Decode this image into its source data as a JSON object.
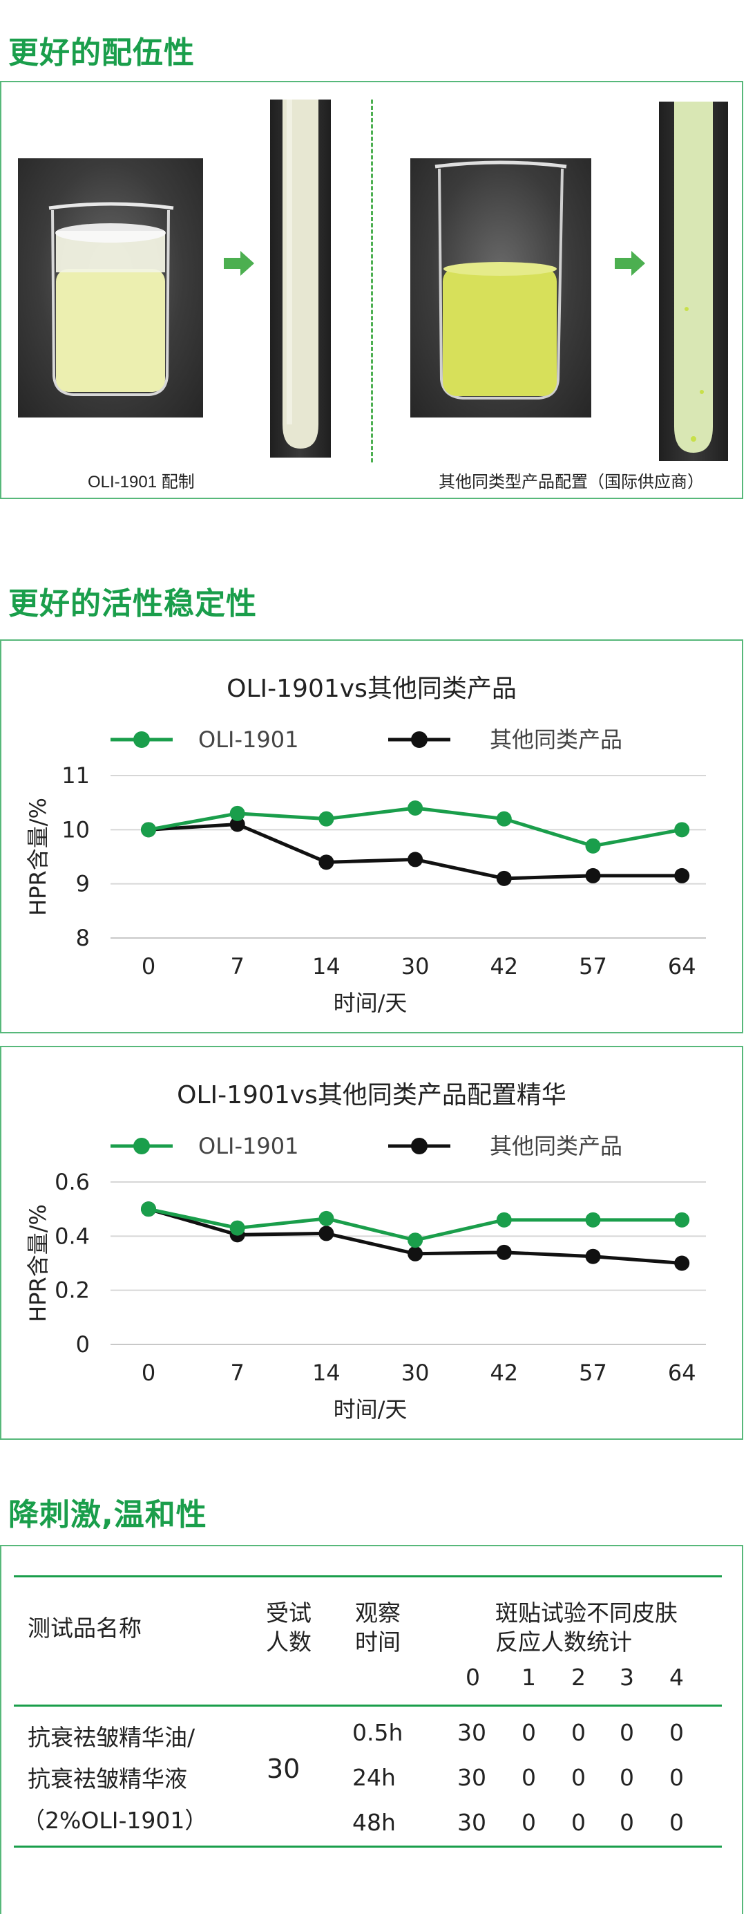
{
  "sections": {
    "dispersion_title": "更好的配伍性",
    "stability_title": "更好的活性稳定性",
    "mildness_title": "降刺激,温和性"
  },
  "dispersion": {
    "left_caption": "OLI-1901 配制",
    "right_caption": "其他同类型产品配置（国际供应商）",
    "colors": {
      "left_liquid": "#ecefb0",
      "right_liquid": "#d7e05a",
      "arrow": "#4caf50",
      "divider": "#4caf50"
    },
    "icons": [
      "beaker-photo",
      "test-tube-photo",
      "arrow-right-icon"
    ]
  },
  "chart_data": [
    {
      "type": "line",
      "title": "OLI-1901vs其他同类产品",
      "xlabel": "时间/天",
      "ylabel": "HPR含量/%",
      "categories": [
        "0",
        "7",
        "14",
        "30",
        "42",
        "57",
        "64"
      ],
      "ylim": [
        8,
        11
      ],
      "yticks": [
        "8",
        "9",
        "10",
        "11"
      ],
      "grid": true,
      "legend_position": "top",
      "series": [
        {
          "name": "OLI-1901",
          "color": "#1a9e4b",
          "values": [
            10.0,
            10.3,
            10.2,
            10.4,
            10.2,
            9.7,
            10.0
          ]
        },
        {
          "name": "其他同类产品",
          "color": "#111111",
          "values": [
            10.0,
            10.1,
            9.4,
            9.45,
            9.1,
            9.15,
            9.15
          ]
        }
      ]
    },
    {
      "type": "line",
      "title": "OLI-1901vs其他同类产品配置精华",
      "xlabel": "时间/天",
      "ylabel": "HPR含量/%",
      "categories": [
        "0",
        "7",
        "14",
        "30",
        "42",
        "57",
        "64"
      ],
      "ylim": [
        0,
        0.6
      ],
      "yticks": [
        "0",
        "0.2",
        "0.4",
        "0.6"
      ],
      "grid": true,
      "legend_position": "top",
      "series": [
        {
          "name": "OLI-1901",
          "color": "#1a9e4b",
          "values": [
            0.5,
            0.43,
            0.465,
            0.385,
            0.46,
            0.46,
            0.46
          ]
        },
        {
          "name": "其他同类产品",
          "color": "#111111",
          "values": [
            0.5,
            0.405,
            0.41,
            0.335,
            0.34,
            0.325,
            0.3
          ]
        }
      ]
    }
  ],
  "patch_table": {
    "headers": {
      "product": "测试品名称",
      "subjects_line1": "受试",
      "subjects_line2": "人数",
      "time_line1": "观察",
      "time_line2": "时间",
      "reaction_line1": "斑贴试验不同皮肤",
      "reaction_line2": "反应人数统计"
    },
    "grades": [
      "0",
      "1",
      "2",
      "3",
      "4"
    ],
    "product_lines": [
      "抗衰祛皱精华油/",
      "抗衰祛皱精华液",
      "（2%OLI-1901）"
    ],
    "subjects": "30",
    "rows": [
      {
        "time": "0.5h",
        "counts": [
          "30",
          "0",
          "0",
          "0",
          "0"
        ]
      },
      {
        "time": "24h",
        "counts": [
          "30",
          "0",
          "0",
          "0",
          "0"
        ]
      },
      {
        "time": "48h",
        "counts": [
          "30",
          "0",
          "0",
          "0",
          "0"
        ]
      }
    ],
    "rule_color": "#1a9e4b"
  }
}
